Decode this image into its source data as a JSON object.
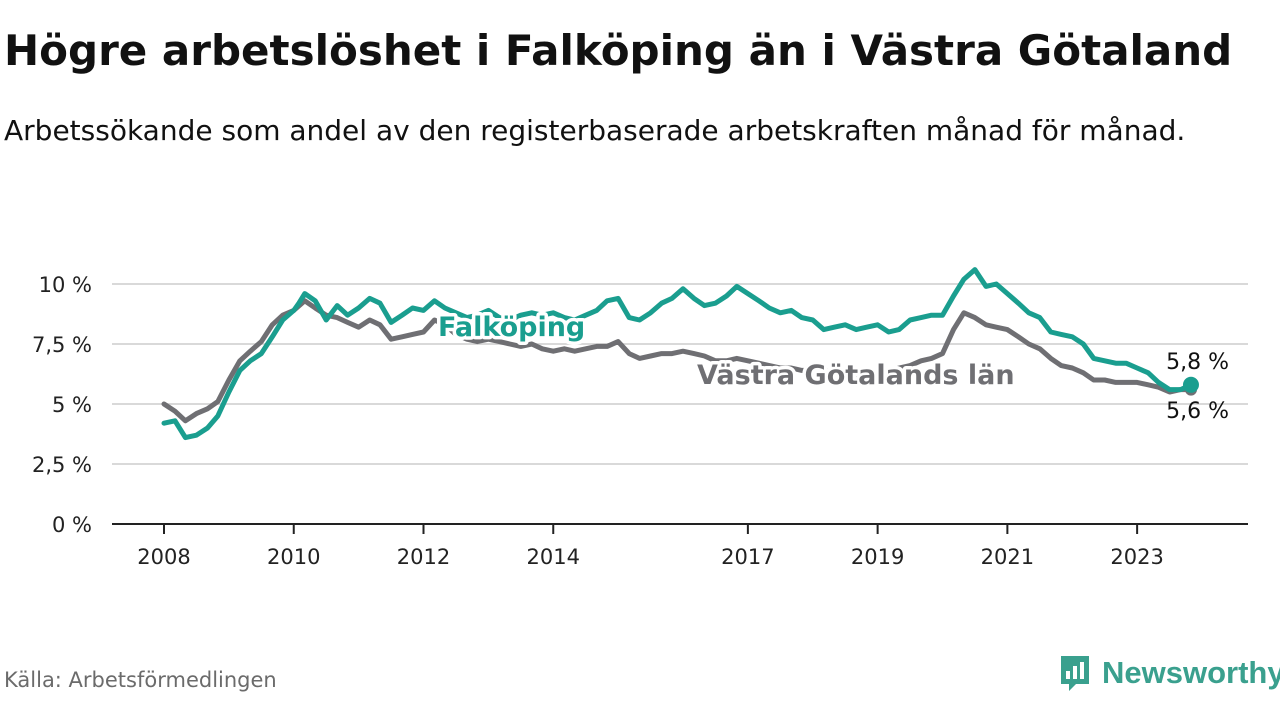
{
  "header": {
    "title": "Högre arbetslöshet i Falköping än i Västra Götaland",
    "subtitle": "Arbetssökande som andel av den registerbaserade arbetskraften månad för månad."
  },
  "footer": {
    "source": "Källa: Arbetsförmedlingen",
    "brand": "Newsworthy",
    "brand_icon": "newsworthy-logo-icon"
  },
  "colors": {
    "falkoping": "#1a9e8f",
    "vastra": "#6f6f73",
    "grid": "#d9d9d9",
    "axis": "#222222"
  },
  "chart_data": {
    "type": "line",
    "title": "Högre arbetslöshet i Falköping än i Västra Götaland",
    "xlabel": "",
    "ylabel": "",
    "xlim": [
      2007.8,
      2024.0
    ],
    "ylim": [
      0,
      10
    ],
    "yticks": [
      0,
      2.5,
      5,
      7.5,
      10
    ],
    "ytick_labels": [
      "0 %",
      "2,5 %",
      "5 %",
      "7,5 %",
      "10 %"
    ],
    "xticks": [
      2008,
      2010,
      2012,
      2014,
      2017,
      2019,
      2021,
      2023
    ],
    "xtick_labels": [
      "2008",
      "2010",
      "2012",
      "2014",
      "2017",
      "2019",
      "2021",
      "2023"
    ],
    "grid": true,
    "series": [
      {
        "name": "Falköping",
        "label": "Falköping",
        "end_label": "5,8 %",
        "points": [
          [
            2008.0,
            4.2
          ],
          [
            2008.17,
            4.3
          ],
          [
            2008.33,
            3.6
          ],
          [
            2008.5,
            3.7
          ],
          [
            2008.67,
            4.0
          ],
          [
            2008.83,
            4.5
          ],
          [
            2009.0,
            5.5
          ],
          [
            2009.17,
            6.4
          ],
          [
            2009.33,
            6.8
          ],
          [
            2009.5,
            7.1
          ],
          [
            2009.67,
            7.8
          ],
          [
            2009.83,
            8.5
          ],
          [
            2010.0,
            8.9
          ],
          [
            2010.08,
            9.2
          ],
          [
            2010.17,
            9.6
          ],
          [
            2010.33,
            9.3
          ],
          [
            2010.5,
            8.5
          ],
          [
            2010.67,
            9.1
          ],
          [
            2010.83,
            8.7
          ],
          [
            2011.0,
            9.0
          ],
          [
            2011.17,
            9.4
          ],
          [
            2011.33,
            9.2
          ],
          [
            2011.5,
            8.4
          ],
          [
            2011.67,
            8.7
          ],
          [
            2011.83,
            9.0
          ],
          [
            2012.0,
            8.9
          ],
          [
            2012.17,
            9.3
          ],
          [
            2012.33,
            9.0
          ],
          [
            2012.5,
            8.8
          ],
          [
            2012.67,
            8.6
          ],
          [
            2012.83,
            8.7
          ],
          [
            2013.0,
            8.9
          ],
          [
            2013.17,
            8.6
          ],
          [
            2013.33,
            8.5
          ],
          [
            2013.5,
            8.7
          ],
          [
            2013.67,
            8.8
          ],
          [
            2013.83,
            8.7
          ],
          [
            2014.0,
            8.8
          ],
          [
            2014.17,
            8.6
          ],
          [
            2014.33,
            8.5
          ],
          [
            2014.5,
            8.7
          ],
          [
            2014.67,
            8.9
          ],
          [
            2014.83,
            9.3
          ],
          [
            2015.0,
            9.4
          ],
          [
            2015.17,
            8.6
          ],
          [
            2015.33,
            8.5
          ],
          [
            2015.5,
            8.8
          ],
          [
            2015.67,
            9.2
          ],
          [
            2015.83,
            9.4
          ],
          [
            2016.0,
            9.8
          ],
          [
            2016.17,
            9.4
          ],
          [
            2016.33,
            9.1
          ],
          [
            2016.5,
            9.2
          ],
          [
            2016.67,
            9.5
          ],
          [
            2016.83,
            9.9
          ],
          [
            2017.0,
            9.6
          ],
          [
            2017.17,
            9.3
          ],
          [
            2017.33,
            9.0
          ],
          [
            2017.5,
            8.8
          ],
          [
            2017.67,
            8.9
          ],
          [
            2017.83,
            8.6
          ],
          [
            2018.0,
            8.5
          ],
          [
            2018.17,
            8.1
          ],
          [
            2018.33,
            8.2
          ],
          [
            2018.5,
            8.3
          ],
          [
            2018.67,
            8.1
          ],
          [
            2018.83,
            8.2
          ],
          [
            2019.0,
            8.3
          ],
          [
            2019.17,
            8.0
          ],
          [
            2019.33,
            8.1
          ],
          [
            2019.5,
            8.5
          ],
          [
            2019.67,
            8.6
          ],
          [
            2019.83,
            8.7
          ],
          [
            2020.0,
            8.7
          ],
          [
            2020.17,
            9.5
          ],
          [
            2020.33,
            10.2
          ],
          [
            2020.5,
            10.6
          ],
          [
            2020.67,
            9.9
          ],
          [
            2020.83,
            10.0
          ],
          [
            2021.0,
            9.6
          ],
          [
            2021.17,
            9.2
          ],
          [
            2021.33,
            8.8
          ],
          [
            2021.5,
            8.6
          ],
          [
            2021.67,
            8.0
          ],
          [
            2021.83,
            7.9
          ],
          [
            2022.0,
            7.8
          ],
          [
            2022.17,
            7.5
          ],
          [
            2022.33,
            6.9
          ],
          [
            2022.5,
            6.8
          ],
          [
            2022.67,
            6.7
          ],
          [
            2022.83,
            6.7
          ],
          [
            2023.0,
            6.5
          ],
          [
            2023.17,
            6.3
          ],
          [
            2023.33,
            5.9
          ],
          [
            2023.5,
            5.6
          ],
          [
            2023.67,
            5.6
          ],
          [
            2023.83,
            5.8
          ]
        ]
      },
      {
        "name": "Västra Götalands län",
        "label": "Västra Götalands län",
        "end_label": "5,6 %",
        "points": [
          [
            2008.0,
            5.0
          ],
          [
            2008.17,
            4.7
          ],
          [
            2008.33,
            4.3
          ],
          [
            2008.5,
            4.6
          ],
          [
            2008.67,
            4.8
          ],
          [
            2008.83,
            5.1
          ],
          [
            2009.0,
            6.0
          ],
          [
            2009.17,
            6.8
          ],
          [
            2009.33,
            7.2
          ],
          [
            2009.5,
            7.6
          ],
          [
            2009.67,
            8.3
          ],
          [
            2009.83,
            8.7
          ],
          [
            2010.0,
            8.9
          ],
          [
            2010.17,
            9.3
          ],
          [
            2010.33,
            9.0
          ],
          [
            2010.5,
            8.7
          ],
          [
            2010.67,
            8.6
          ],
          [
            2010.83,
            8.4
          ],
          [
            2011.0,
            8.2
          ],
          [
            2011.17,
            8.5
          ],
          [
            2011.33,
            8.3
          ],
          [
            2011.5,
            7.7
          ],
          [
            2011.67,
            7.8
          ],
          [
            2011.83,
            7.9
          ],
          [
            2012.0,
            8.0
          ],
          [
            2012.17,
            8.5
          ],
          [
            2012.33,
            8.3
          ],
          [
            2012.5,
            7.9
          ],
          [
            2012.67,
            7.7
          ],
          [
            2012.83,
            7.6
          ],
          [
            2013.0,
            7.7
          ],
          [
            2013.17,
            7.6
          ],
          [
            2013.33,
            7.5
          ],
          [
            2013.5,
            7.4
          ],
          [
            2013.67,
            7.5
          ],
          [
            2013.83,
            7.3
          ],
          [
            2014.0,
            7.2
          ],
          [
            2014.17,
            7.3
          ],
          [
            2014.33,
            7.2
          ],
          [
            2014.5,
            7.3
          ],
          [
            2014.67,
            7.4
          ],
          [
            2014.83,
            7.4
          ],
          [
            2015.0,
            7.6
          ],
          [
            2015.17,
            7.1
          ],
          [
            2015.33,
            6.9
          ],
          [
            2015.5,
            7.0
          ],
          [
            2015.67,
            7.1
          ],
          [
            2015.83,
            7.1
          ],
          [
            2016.0,
            7.2
          ],
          [
            2016.17,
            7.1
          ],
          [
            2016.33,
            7.0
          ],
          [
            2016.5,
            6.8
          ],
          [
            2016.67,
            6.8
          ],
          [
            2016.83,
            6.9
          ],
          [
            2017.0,
            6.8
          ],
          [
            2017.17,
            6.7
          ],
          [
            2017.33,
            6.6
          ],
          [
            2017.5,
            6.5
          ],
          [
            2017.67,
            6.5
          ],
          [
            2017.83,
            6.4
          ],
          [
            2018.0,
            6.4
          ],
          [
            2018.17,
            6.4
          ],
          [
            2018.33,
            6.3
          ],
          [
            2018.5,
            6.3
          ],
          [
            2018.67,
            6.2
          ],
          [
            2018.83,
            6.3
          ],
          [
            2019.0,
            6.3
          ],
          [
            2019.17,
            6.4
          ],
          [
            2019.33,
            6.5
          ],
          [
            2019.5,
            6.6
          ],
          [
            2019.67,
            6.8
          ],
          [
            2019.83,
            6.9
          ],
          [
            2020.0,
            7.1
          ],
          [
            2020.17,
            8.1
          ],
          [
            2020.33,
            8.8
          ],
          [
            2020.5,
            8.6
          ],
          [
            2020.67,
            8.3
          ],
          [
            2020.83,
            8.2
          ],
          [
            2021.0,
            8.1
          ],
          [
            2021.17,
            7.8
          ],
          [
            2021.33,
            7.5
          ],
          [
            2021.5,
            7.3
          ],
          [
            2021.67,
            6.9
          ],
          [
            2021.83,
            6.6
          ],
          [
            2022.0,
            6.5
          ],
          [
            2022.17,
            6.3
          ],
          [
            2022.33,
            6.0
          ],
          [
            2022.5,
            6.0
          ],
          [
            2022.67,
            5.9
          ],
          [
            2022.83,
            5.9
          ],
          [
            2023.0,
            5.9
          ],
          [
            2023.17,
            5.8
          ],
          [
            2023.33,
            5.7
          ],
          [
            2023.5,
            5.5
          ],
          [
            2023.67,
            5.6
          ],
          [
            2023.83,
            5.6
          ]
        ]
      }
    ]
  }
}
